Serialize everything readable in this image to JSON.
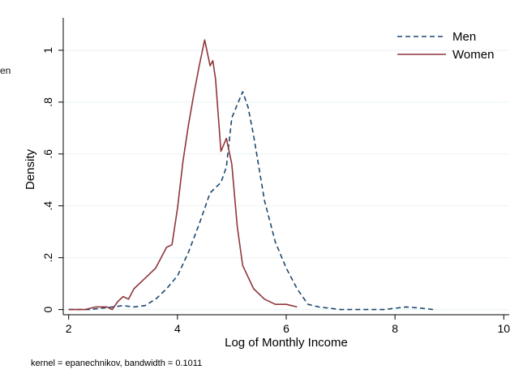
{
  "background_fragment": "en",
  "note": "kernel = epanechnikov, bandwidth = 0.1011",
  "chart_data": {
    "type": "line",
    "title": "",
    "xlabel": "Log of Monthly Income",
    "ylabel": "Density",
    "xlim": [
      1.9,
      10.1
    ],
    "ylim": [
      -0.02,
      1.1
    ],
    "xticks": [
      2,
      4,
      6,
      8,
      10
    ],
    "xtick_labels": [
      "2",
      "4",
      "6",
      "8",
      "10"
    ],
    "yticks": [
      0,
      0.2,
      0.4,
      0.6,
      0.8,
      1
    ],
    "ytick_labels": [
      "0",
      ".2",
      ".4",
      ".6",
      ".8",
      "1"
    ],
    "grid": true,
    "legend_position": "top-right",
    "series": [
      {
        "name": "Men",
        "color": "#1a476f",
        "style": "dashed",
        "x": [
          2.0,
          2.2,
          2.4,
          2.6,
          2.8,
          3.0,
          3.2,
          3.4,
          3.6,
          3.8,
          4.0,
          4.2,
          4.4,
          4.6,
          4.8,
          4.9,
          5.0,
          5.1,
          5.2,
          5.3,
          5.4,
          5.6,
          5.8,
          6.0,
          6.2,
          6.4,
          6.6,
          7.0,
          7.4,
          7.8,
          8.2,
          8.5,
          8.7
        ],
        "y": [
          0.0,
          0.0,
          0.0,
          0.005,
          0.01,
          0.015,
          0.01,
          0.015,
          0.04,
          0.08,
          0.13,
          0.22,
          0.33,
          0.45,
          0.49,
          0.55,
          0.74,
          0.79,
          0.84,
          0.78,
          0.67,
          0.42,
          0.26,
          0.16,
          0.08,
          0.02,
          0.01,
          0.0,
          0.0,
          0.0,
          0.01,
          0.005,
          0.0
        ]
      },
      {
        "name": "Women",
        "color": "#90353b",
        "style": "solid",
        "x": [
          2.0,
          2.3,
          2.5,
          2.7,
          2.8,
          2.9,
          3.0,
          3.1,
          3.2,
          3.4,
          3.6,
          3.8,
          3.9,
          4.0,
          4.1,
          4.2,
          4.3,
          4.4,
          4.5,
          4.6,
          4.65,
          4.7,
          4.8,
          4.9,
          5.0,
          5.1,
          5.2,
          5.4,
          5.6,
          5.8,
          6.0,
          6.2
        ],
        "y": [
          0.0,
          0.0,
          0.01,
          0.01,
          0.0,
          0.03,
          0.05,
          0.04,
          0.08,
          0.12,
          0.16,
          0.24,
          0.25,
          0.39,
          0.57,
          0.71,
          0.83,
          0.94,
          1.04,
          0.94,
          0.96,
          0.89,
          0.61,
          0.66,
          0.56,
          0.32,
          0.17,
          0.08,
          0.04,
          0.02,
          0.02,
          0.01
        ]
      }
    ]
  }
}
